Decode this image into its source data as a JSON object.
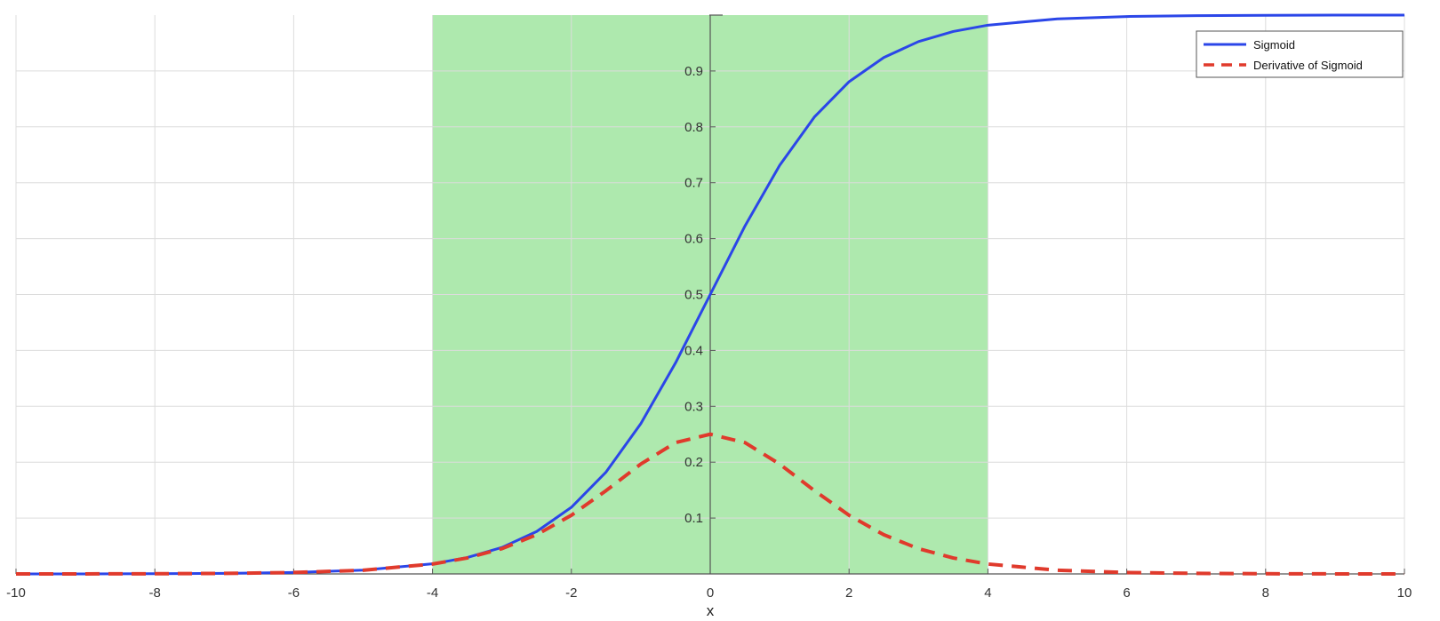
{
  "chart_data": {
    "type": "line",
    "title": "",
    "xlabel": "x",
    "ylabel": "",
    "xlim": [
      -10,
      10
    ],
    "ylim": [
      0,
      1
    ],
    "grid": true,
    "legend_position": "top-right",
    "x_ticks": [
      -10,
      -8,
      -6,
      -4,
      -2,
      0,
      2,
      4,
      6,
      8,
      10
    ],
    "x_tick_labels": [
      "-10",
      "-8",
      "-6",
      "-4",
      "-2",
      "0",
      "2",
      "4",
      "6",
      "8",
      "10"
    ],
    "y_ticks": [
      0.1,
      0.2,
      0.3,
      0.4,
      0.5,
      0.6,
      0.7,
      0.8,
      0.9
    ],
    "y_tick_labels": [
      "0.1",
      "0.2",
      "0.3",
      "0.4",
      "0.5",
      "0.6",
      "0.7",
      "0.8",
      "0.9"
    ],
    "highlight_region": {
      "x_start": -4,
      "x_end": 4,
      "color": "#8fe08f"
    },
    "x": [
      -10,
      -9,
      -8,
      -7,
      -6,
      -5,
      -4,
      -3.5,
      -3,
      -2.5,
      -2,
      -1.5,
      -1,
      -0.5,
      0,
      0.5,
      1,
      1.5,
      2,
      2.5,
      3,
      3.5,
      4,
      5,
      6,
      7,
      8,
      9,
      10
    ],
    "series": [
      {
        "name": "Sigmoid",
        "color": "#2b46e8",
        "style": "solid",
        "values": [
          0.0,
          0.0001,
          0.0003,
          0.0009,
          0.0025,
          0.0067,
          0.018,
          0.0293,
          0.0474,
          0.0759,
          0.1192,
          0.1824,
          0.2689,
          0.3775,
          0.5,
          0.6225,
          0.7311,
          0.8176,
          0.8808,
          0.9241,
          0.9526,
          0.9707,
          0.982,
          0.9933,
          0.9975,
          0.9991,
          0.9997,
          0.9999,
          1.0
        ]
      },
      {
        "name": "Derivative of Sigmoid",
        "color": "#e03a2c",
        "style": "dashed",
        "values": [
          0.0,
          0.0001,
          0.0003,
          0.0009,
          0.0025,
          0.0066,
          0.0177,
          0.0285,
          0.0452,
          0.0701,
          0.105,
          0.1491,
          0.1966,
          0.235,
          0.25,
          0.235,
          0.1966,
          0.1491,
          0.105,
          0.0701,
          0.0452,
          0.0285,
          0.0177,
          0.0066,
          0.0025,
          0.0009,
          0.0003,
          0.0001,
          0.0
        ]
      }
    ]
  }
}
